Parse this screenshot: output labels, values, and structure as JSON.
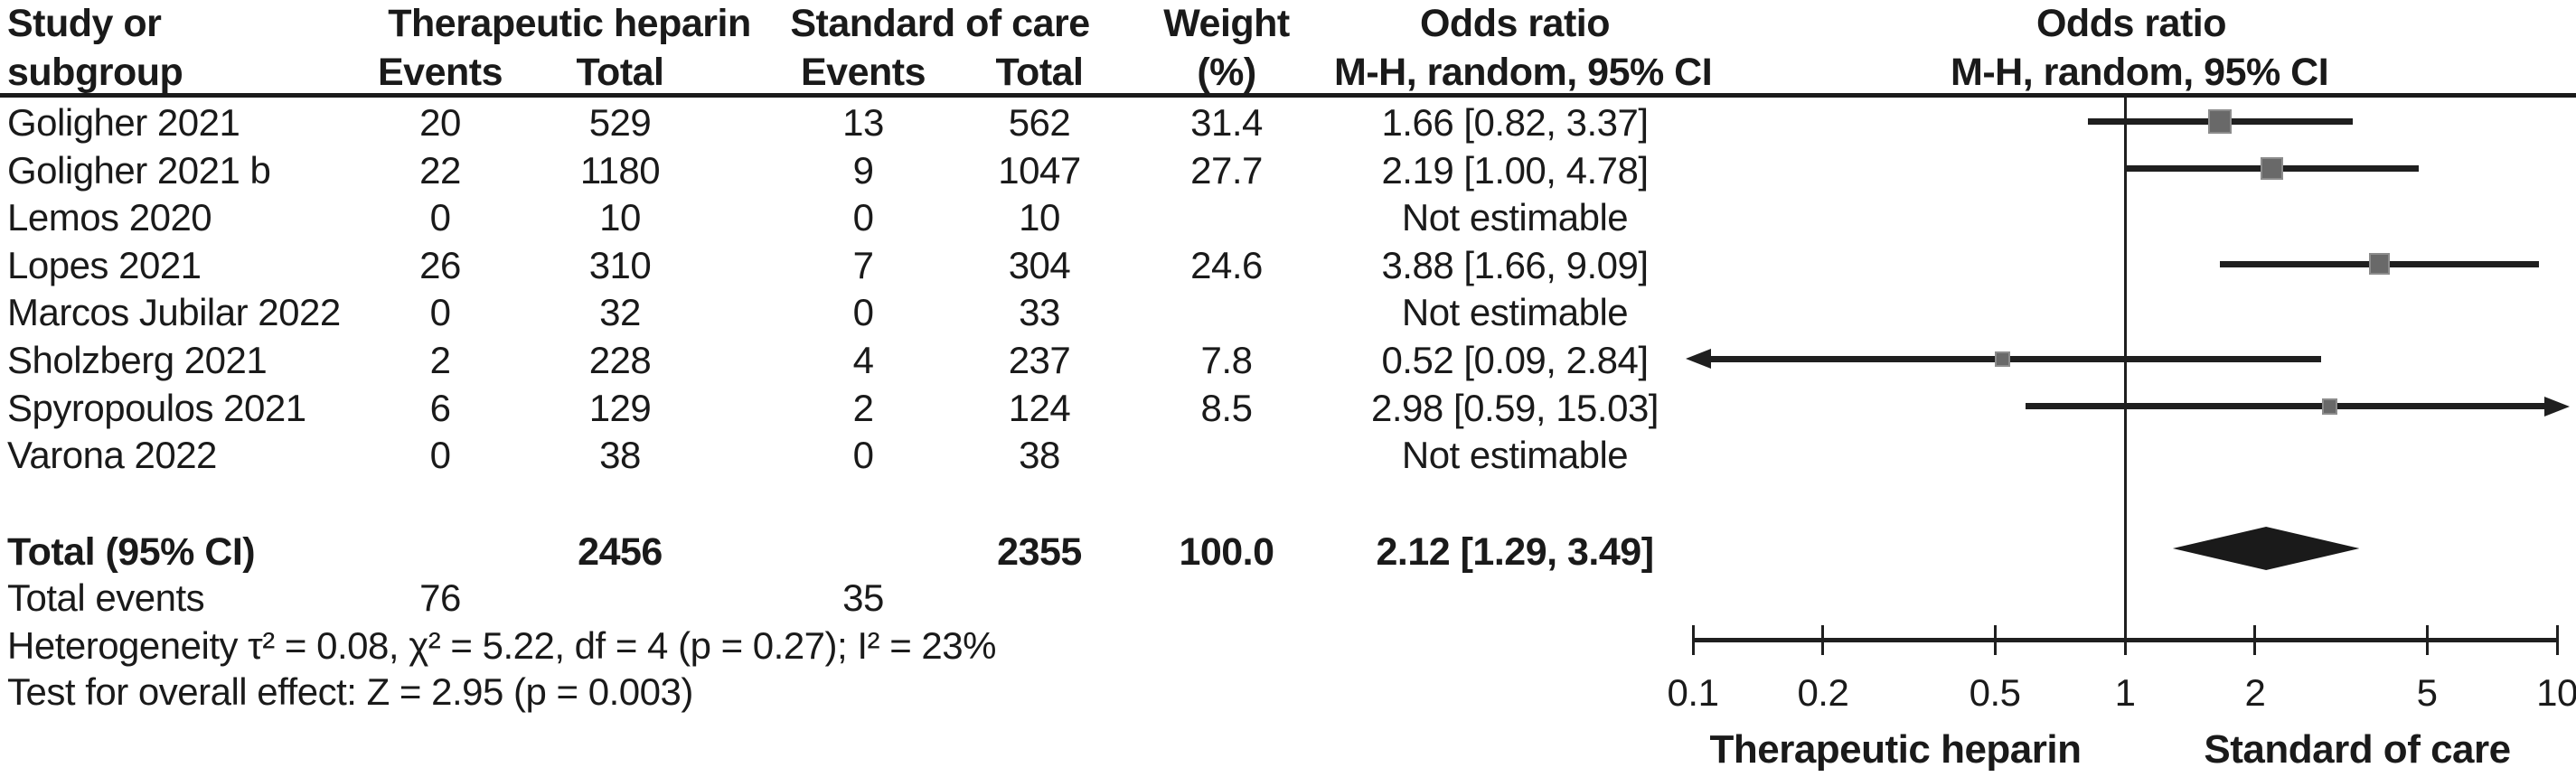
{
  "chart_data": {
    "type": "forest_plot",
    "effect_measure": "Odds ratio",
    "method": "M-H, random, 95% CI",
    "columns": {
      "study_line1": "Study or",
      "study_line2": "subgroup",
      "group_therapeutic": "Therapeutic heparin",
      "group_standard": "Standard of care",
      "events": "Events",
      "total": "Total",
      "weight_line1": "Weight",
      "weight_line2": "(%)",
      "or_line1": "Odds ratio",
      "or_line2": "M-H, random, 95% CI",
      "plot_line1": "Odds ratio",
      "plot_line2": "M-H, random, 95% CI"
    },
    "studies": [
      {
        "name": "Goligher 2021",
        "th_events": "20",
        "th_total": "529",
        "soc_events": "13",
        "soc_total": "562",
        "weight": "31.4",
        "or_text": "1.66 [0.82, 3.37]",
        "or": 1.66,
        "ci_low": 0.82,
        "ci_high": 3.37
      },
      {
        "name": "Goligher 2021 b",
        "th_events": "22",
        "th_total": "1180",
        "soc_events": "9",
        "soc_total": "1047",
        "weight": "27.7",
        "or_text": "2.19 [1.00, 4.78]",
        "or": 2.19,
        "ci_low": 1.0,
        "ci_high": 4.78
      },
      {
        "name": "Lemos 2020",
        "th_events": "0",
        "th_total": "10",
        "soc_events": "0",
        "soc_total": "10",
        "weight": "",
        "or_text": "Not estimable",
        "or": null,
        "ci_low": null,
        "ci_high": null
      },
      {
        "name": "Lopes 2021",
        "th_events": "26",
        "th_total": "310",
        "soc_events": "7",
        "soc_total": "304",
        "weight": "24.6",
        "or_text": "3.88 [1.66, 9.09]",
        "or": 3.88,
        "ci_low": 1.66,
        "ci_high": 9.09
      },
      {
        "name": "Marcos Jubilar 2022",
        "th_events": "0",
        "th_total": "32",
        "soc_events": "0",
        "soc_total": "33",
        "weight": "",
        "or_text": "Not estimable",
        "or": null,
        "ci_low": null,
        "ci_high": null
      },
      {
        "name": "Sholzberg 2021",
        "th_events": "2",
        "th_total": "228",
        "soc_events": "4",
        "soc_total": "237",
        "weight": "7.8",
        "or_text": "0.52 [0.09, 2.84]",
        "or": 0.52,
        "ci_low": 0.09,
        "ci_high": 2.84
      },
      {
        "name": "Spyropoulos 2021",
        "th_events": "6",
        "th_total": "129",
        "soc_events": "2",
        "soc_total": "124",
        "weight": "8.5",
        "or_text": "2.98 [0.59, 15.03]",
        "or": 2.98,
        "ci_low": 0.59,
        "ci_high": 15.03
      },
      {
        "name": "Varona 2022",
        "th_events": "0",
        "th_total": "38",
        "soc_events": "0",
        "soc_total": "38",
        "weight": "",
        "or_text": "Not estimable",
        "or": null,
        "ci_low": null,
        "ci_high": null
      }
    ],
    "total_row": {
      "label": "Total (95% CI)",
      "th_total": "2456",
      "soc_total": "2355",
      "weight": "100.0",
      "or_text": "2.12 [1.29, 3.49]",
      "or": 2.12,
      "ci_low": 1.29,
      "ci_high": 3.49
    },
    "total_events": {
      "label": "Total events",
      "th_events": "76",
      "soc_events": "35"
    },
    "footnotes": {
      "heterogeneity": "Heterogeneity τ² = 0.08, χ² = 5.22, df = 4 (p = 0.27); I² = 23%",
      "overall_effect": "Test for overall effect: Z = 2.95 (p = 0.003)"
    },
    "axis": {
      "scale": "log",
      "min": 0.1,
      "max": 10,
      "ticks": [
        0.1,
        0.2,
        0.5,
        1,
        2,
        5,
        10
      ],
      "null_value": 1,
      "left_label": "Therapeutic heparin",
      "right_label": "Standard of care"
    },
    "colors": {
      "text": "#1a1a1a",
      "line": "#1f1f1f",
      "marker": "#696969",
      "marker_border": "#8c8c8c",
      "diamond": "#1a1a1a"
    }
  }
}
